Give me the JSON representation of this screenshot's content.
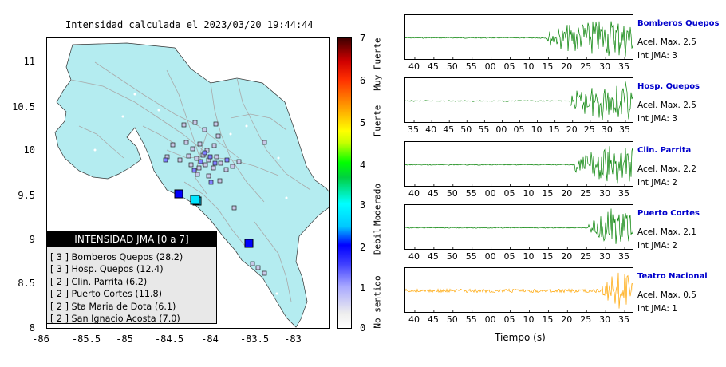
{
  "title": "Intensidad calculada el 2023/03/20_19:44:44",
  "map": {
    "lat_ticks": [
      "11",
      "10.5",
      "10",
      "9.5",
      "9",
      "8.5",
      "8"
    ],
    "lon_ticks": [
      "-86",
      "-85.5",
      "-85",
      "-84.5",
      "-84",
      "-83.5",
      "-83"
    ]
  },
  "legend": {
    "header": "INTENSIDAD JMA [0 a 7]",
    "rows": [
      "[ 3 ]  Bomberos Quepos (28.2)",
      "[ 3 ]  Hosp. Quepos (12.4)",
      "[ 2 ]  Clin. Parrita (6.2)",
      "[ 2 ]  Puerto Cortes (11.8)",
      "[ 2 ]  Sta Maria de Dota (6.1)",
      "[ 2 ]  San Ignacio Acosta (7.0)"
    ]
  },
  "colorbar": {
    "ticks": [
      "7",
      "6",
      "5",
      "4",
      "3",
      "2",
      "1",
      "0"
    ],
    "words": [
      "Muy Fuerte",
      "Fuerte",
      "Moderado",
      "Debil",
      "No sentido"
    ]
  },
  "colors": {
    "sea": "#ffffff",
    "land": "#b4ecf0",
    "trace_green": "#008000",
    "trace_orange": "#ffa500",
    "station_name": "#0000cc"
  },
  "stations": [
    {
      "name": "Bomberos Quepos",
      "accel": "Acel. Max. 2.5",
      "jma": "Int JMA: 3",
      "color": "#008000",
      "ticks": [
        "40",
        "45",
        "50",
        "55",
        "00",
        "05",
        "10",
        "15",
        "20",
        "25",
        "30",
        "35"
      ]
    },
    {
      "name": "Hosp. Quepos",
      "accel": "Acel. Max. 2.5",
      "jma": "Int JMA: 3",
      "color": "#008000",
      "ticks": [
        "35",
        "40",
        "45",
        "50",
        "55",
        "00",
        "05",
        "10",
        "15",
        "20",
        "25",
        "30",
        "35"
      ]
    },
    {
      "name": "Clin. Parrita",
      "accel": "Acel. Max. 2.2",
      "jma": "Int JMA: 2",
      "color": "#008000",
      "ticks": [
        "40",
        "45",
        "50",
        "55",
        "00",
        "05",
        "10",
        "15",
        "20",
        "25",
        "30",
        "35"
      ]
    },
    {
      "name": "Puerto Cortes",
      "accel": "Acel. Max. 2.1",
      "jma": "Int JMA: 2",
      "color": "#008000",
      "ticks": [
        "40",
        "45",
        "50",
        "55",
        "00",
        "05",
        "10",
        "15",
        "20",
        "25",
        "30",
        "35"
      ]
    },
    {
      "name": "Teatro Nacional",
      "accel": "Acel. Max. 0.5",
      "jma": "Int JMA: 1",
      "color": "#ffa500",
      "ticks": [
        "40",
        "45",
        "50",
        "55",
        "00",
        "05",
        "10",
        "15",
        "20",
        "25",
        "30",
        "35"
      ]
    }
  ],
  "time_axis_label": "Tiempo (s)"
}
